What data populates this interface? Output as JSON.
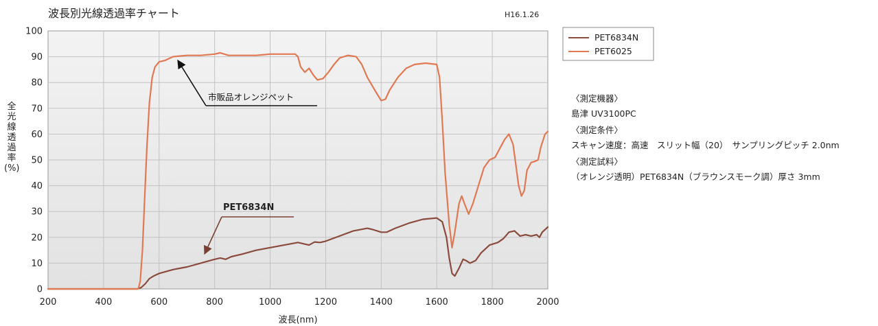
{
  "chart_data": {
    "type": "line",
    "title": "波長別光線透過率チャート",
    "date_label": "H16.1.26",
    "xlabel": "波長(nm)",
    "ylabel": "全光線透過率(%)",
    "xlim": [
      200,
      2000
    ],
    "ylim": [
      0,
      100
    ],
    "xticks": [
      200,
      400,
      600,
      800,
      1000,
      1200,
      1400,
      1600,
      1800,
      2000
    ],
    "yticks": [
      0,
      10,
      20,
      30,
      40,
      50,
      60,
      70,
      80,
      90,
      100
    ],
    "grid": true,
    "legend_position": "top-right-outside",
    "series": [
      {
        "name": "PET6834N",
        "color": "#8a4a3c",
        "points": [
          [
            200,
            0
          ],
          [
            520,
            0
          ],
          [
            535,
            0.5
          ],
          [
            550,
            2
          ],
          [
            565,
            4
          ],
          [
            580,
            5
          ],
          [
            600,
            6
          ],
          [
            650,
            7.5
          ],
          [
            700,
            8.5
          ],
          [
            750,
            10
          ],
          [
            800,
            11.5
          ],
          [
            820,
            12
          ],
          [
            840,
            11.5
          ],
          [
            860,
            12.5
          ],
          [
            900,
            13.5
          ],
          [
            950,
            15
          ],
          [
            1000,
            16
          ],
          [
            1050,
            17
          ],
          [
            1100,
            18
          ],
          [
            1120,
            17.5
          ],
          [
            1140,
            17
          ],
          [
            1160,
            18.2
          ],
          [
            1180,
            18
          ],
          [
            1200,
            18.5
          ],
          [
            1250,
            20.5
          ],
          [
            1300,
            22.5
          ],
          [
            1350,
            23.5
          ],
          [
            1370,
            23
          ],
          [
            1400,
            22
          ],
          [
            1420,
            22
          ],
          [
            1450,
            23.5
          ],
          [
            1500,
            25.5
          ],
          [
            1550,
            27
          ],
          [
            1600,
            27.5
          ],
          [
            1620,
            26
          ],
          [
            1635,
            20
          ],
          [
            1645,
            12
          ],
          [
            1655,
            6
          ],
          [
            1665,
            5
          ],
          [
            1680,
            8
          ],
          [
            1695,
            11.5
          ],
          [
            1705,
            11
          ],
          [
            1720,
            10
          ],
          [
            1740,
            11
          ],
          [
            1760,
            14
          ],
          [
            1790,
            17
          ],
          [
            1820,
            18
          ],
          [
            1840,
            19.5
          ],
          [
            1860,
            22
          ],
          [
            1880,
            22.5
          ],
          [
            1900,
            20.5
          ],
          [
            1920,
            21
          ],
          [
            1940,
            20.5
          ],
          [
            1960,
            21
          ],
          [
            1970,
            20
          ],
          [
            1980,
            22
          ],
          [
            2000,
            24
          ]
        ]
      },
      {
        "name": "PET6025",
        "color": "#e07852",
        "points": [
          [
            200,
            0
          ],
          [
            525,
            0
          ],
          [
            532,
            3
          ],
          [
            540,
            15
          ],
          [
            548,
            35
          ],
          [
            556,
            55
          ],
          [
            565,
            72
          ],
          [
            575,
            82
          ],
          [
            585,
            86
          ],
          [
            600,
            88
          ],
          [
            620,
            88.5
          ],
          [
            650,
            90
          ],
          [
            700,
            90.5
          ],
          [
            750,
            90.5
          ],
          [
            800,
            91
          ],
          [
            820,
            91.5
          ],
          [
            850,
            90.5
          ],
          [
            900,
            90.5
          ],
          [
            950,
            90.5
          ],
          [
            1000,
            91
          ],
          [
            1050,
            91
          ],
          [
            1090,
            91
          ],
          [
            1100,
            90
          ],
          [
            1110,
            86
          ],
          [
            1125,
            84
          ],
          [
            1140,
            85.5
          ],
          [
            1155,
            83
          ],
          [
            1170,
            81
          ],
          [
            1190,
            81.5
          ],
          [
            1210,
            84
          ],
          [
            1230,
            87
          ],
          [
            1250,
            89.5
          ],
          [
            1280,
            90.5
          ],
          [
            1310,
            90
          ],
          [
            1330,
            87
          ],
          [
            1350,
            82
          ],
          [
            1380,
            76.5
          ],
          [
            1400,
            73
          ],
          [
            1415,
            73.5
          ],
          [
            1430,
            77
          ],
          [
            1460,
            82
          ],
          [
            1490,
            85.5
          ],
          [
            1520,
            87
          ],
          [
            1560,
            87.5
          ],
          [
            1600,
            87
          ],
          [
            1610,
            82
          ],
          [
            1620,
            65
          ],
          [
            1630,
            45
          ],
          [
            1645,
            25
          ],
          [
            1655,
            16
          ],
          [
            1665,
            22
          ],
          [
            1680,
            33
          ],
          [
            1690,
            36
          ],
          [
            1700,
            33
          ],
          [
            1715,
            29
          ],
          [
            1730,
            33
          ],
          [
            1750,
            40
          ],
          [
            1770,
            47
          ],
          [
            1790,
            50
          ],
          [
            1810,
            51
          ],
          [
            1830,
            55
          ],
          [
            1845,
            58
          ],
          [
            1860,
            60
          ],
          [
            1875,
            56
          ],
          [
            1885,
            48
          ],
          [
            1895,
            40
          ],
          [
            1905,
            36
          ],
          [
            1915,
            38
          ],
          [
            1925,
            46
          ],
          [
            1940,
            49
          ],
          [
            1955,
            49.5
          ],
          [
            1965,
            50
          ],
          [
            1975,
            55
          ],
          [
            1990,
            60
          ],
          [
            2000,
            61
          ]
        ]
      }
    ],
    "annotations": [
      {
        "text": "市販品オレンジペット",
        "target": "PET6025",
        "point": [
          660,
          88
        ]
      },
      {
        "text": "PET6834N",
        "target": "PET6834N",
        "point": [
          760,
          10.5
        ]
      }
    ]
  },
  "info": {
    "device_heading": "〈測定機器〉",
    "device_value": "島津 UV3100PC",
    "conditions_heading": "〈測定条件〉",
    "conditions_value": "スキャン速度：高速　スリット幅（20）　サンプリングピッチ 2.0nm",
    "sample_heading": "〈測定試料〉",
    "sample_value": "（オレンジ透明）PET6834N（ブラウンスモーク調）厚さ 3mm"
  }
}
